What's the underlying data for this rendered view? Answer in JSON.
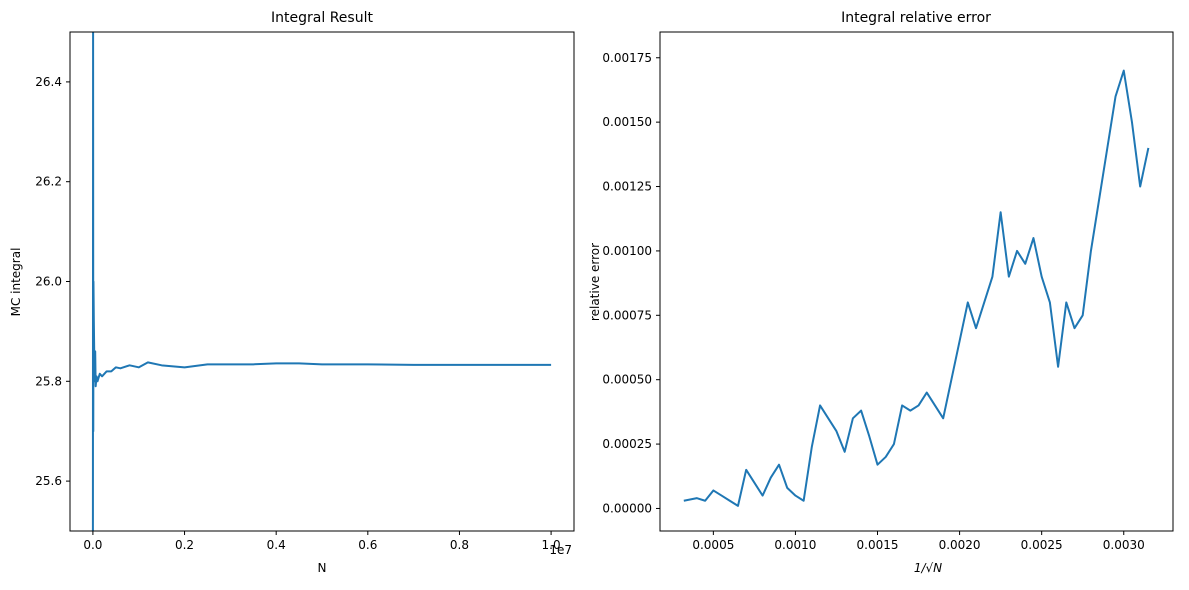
{
  "chart_data": [
    {
      "type": "line",
      "title": "Integral Result",
      "xlabel": "N",
      "ylabel": "MC integral",
      "x_offset_text": "1e7",
      "xlim": [
        -0.05,
        1.05
      ],
      "ylim": [
        25.5,
        26.5
      ],
      "x_ticks": [
        0.0,
        0.2,
        0.4,
        0.6,
        0.8,
        1.0
      ],
      "x_tick_labels": [
        "0.0",
        "0.2",
        "0.4",
        "0.6",
        "0.8",
        "1.0"
      ],
      "y_ticks": [
        25.6,
        25.8,
        26.0,
        26.2,
        26.4
      ],
      "y_tick_labels": [
        "25.6",
        "25.8",
        "26.0",
        "26.2",
        "26.4"
      ],
      "color": "#1f77b4",
      "grid": false,
      "series": [
        {
          "x": [
            0.0,
            0.0004,
            0.0008,
            0.0012,
            0.002,
            0.003,
            0.004,
            0.005,
            0.006,
            0.008,
            0.01,
            0.015,
            0.02,
            0.03,
            0.04,
            0.05,
            0.06,
            0.08,
            0.1,
            0.12,
            0.15,
            0.2,
            0.25,
            0.3,
            0.35,
            0.4,
            0.45,
            0.5,
            0.6,
            0.7,
            0.8,
            0.9,
            1.0
          ],
          "y": [
            25.5,
            26.5,
            25.7,
            26.0,
            25.92,
            25.85,
            25.8,
            25.86,
            25.79,
            25.81,
            25.8,
            25.815,
            25.81,
            25.82,
            25.82,
            25.828,
            25.826,
            25.832,
            25.828,
            25.838,
            25.832,
            25.828,
            25.834,
            25.834,
            25.834,
            25.836,
            25.836,
            25.834,
            25.834,
            25.833,
            25.833,
            25.833,
            25.833
          ]
        }
      ]
    },
    {
      "type": "line",
      "title": "Integral relative error",
      "xlabel": "1/√N",
      "ylabel": "relative error",
      "xlim": [
        0.000175,
        0.0033
      ],
      "ylim": [
        -8.75e-05,
        0.00185
      ],
      "x_ticks": [
        0.0005,
        0.001,
        0.0015,
        0.002,
        0.0025,
        0.003
      ],
      "x_tick_labels": [
        "0.0005",
        "0.0010",
        "0.0015",
        "0.0020",
        "0.0025",
        "0.0030"
      ],
      "y_ticks": [
        0.0,
        0.00025,
        0.0005,
        0.00075,
        0.001,
        0.00125,
        0.0015,
        0.00175
      ],
      "y_tick_labels": [
        "0.00000",
        "0.00025",
        "0.00050",
        "0.00075",
        "0.00100",
        "0.00125",
        "0.00150",
        "0.00175"
      ],
      "color": "#1f77b4",
      "grid": false,
      "series": [
        {
          "x": [
            0.00032,
            0.0004,
            0.00045,
            0.0005,
            0.00055,
            0.0006,
            0.00065,
            0.0007,
            0.00075,
            0.0008,
            0.00085,
            0.0009,
            0.00095,
            0.001,
            0.00105,
            0.0011,
            0.00115,
            0.0012,
            0.00125,
            0.0013,
            0.00135,
            0.0014,
            0.00145,
            0.0015,
            0.00155,
            0.0016,
            0.00165,
            0.0017,
            0.00175,
            0.0018,
            0.00185,
            0.0019,
            0.00195,
            0.002,
            0.00205,
            0.0021,
            0.00215,
            0.0022,
            0.00225,
            0.0023,
            0.00235,
            0.0024,
            0.00245,
            0.0025,
            0.00255,
            0.0026,
            0.00265,
            0.0027,
            0.00275,
            0.0028,
            0.00285,
            0.0029,
            0.00295,
            0.003,
            0.00305,
            0.0031,
            0.00315
          ],
          "y": [
            3e-05,
            4e-05,
            3e-05,
            7e-05,
            5e-05,
            3e-05,
            1e-05,
            0.00015,
            0.0001,
            5e-05,
            0.00012,
            0.00017,
            8e-05,
            5e-05,
            3e-05,
            0.00024,
            0.0004,
            0.00035,
            0.0003,
            0.00022,
            0.00035,
            0.00038,
            0.00028,
            0.00017,
            0.0002,
            0.00025,
            0.0004,
            0.00038,
            0.0004,
            0.00045,
            0.0004,
            0.00035,
            0.0005,
            0.00065,
            0.0008,
            0.0007,
            0.0008,
            0.0009,
            0.00115,
            0.0009,
            0.001,
            0.00095,
            0.00105,
            0.0009,
            0.0008,
            0.00055,
            0.0008,
            0.0007,
            0.00075,
            0.001,
            0.0012,
            0.0014,
            0.0016,
            0.0017,
            0.0015,
            0.00125,
            0.0014
          ]
        }
      ]
    }
  ]
}
